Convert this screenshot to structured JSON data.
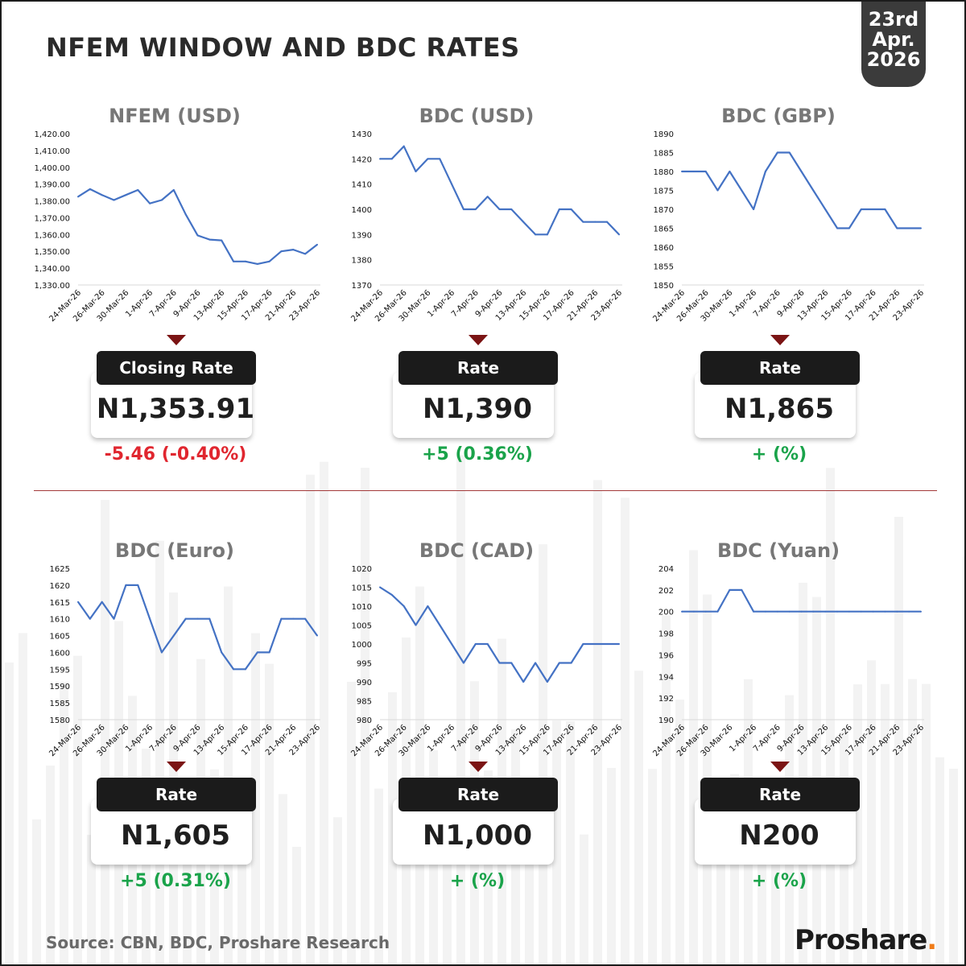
{
  "header": {
    "title": "NFEM WINDOW AND BDC RATES",
    "date_line1": "23rd",
    "date_line2": "Apr.",
    "date_line3": "2026"
  },
  "source": "Source: CBN, BDC, Proshare Research",
  "logo": {
    "text": "Proshare",
    "dot": "."
  },
  "colors": {
    "line": "#4472c4",
    "negative": "#e0262f",
    "positive": "#1aa34a",
    "arrow": "#7b1414"
  },
  "x_tick_labels": [
    "24-Mar-26",
    "26-Mar-26",
    "30-Mar-26",
    "1-Apr-26",
    "7-Apr-26",
    "9-Apr-26",
    "13-Apr-26",
    "15-Apr-26",
    "17-Apr-26",
    "21-Apr-26",
    "23-Apr-26"
  ],
  "panels": [
    {
      "title": "NFEM (USD)",
      "rate_label": "Closing Rate",
      "rate_value": "N1,353.91",
      "change": "-5.46 (-0.40%)",
      "change_sign": "negative",
      "chart_data": {
        "type": "line",
        "title": "NFEM (USD)",
        "ylim": [
          1330,
          1420
        ],
        "y_ticks": [
          "1,330.00",
          "1,340.00",
          "1,350.00",
          "1,360.00",
          "1,370.00",
          "1,380.00",
          "1,390.00",
          "1,400.00",
          "1,410.00",
          "1,420.00"
        ],
        "values": [
          1382.5,
          1387,
          1383.5,
          1380.5,
          1383.5,
          1386.5,
          1378.5,
          1380.5,
          1386.5,
          1372,
          1359.5,
          1357,
          1356.5,
          1344,
          1344,
          1342.5,
          1344,
          1350,
          1351,
          1348.5,
          1354
        ]
      }
    },
    {
      "title": "BDC (USD)",
      "rate_label": "Rate",
      "rate_value": "N1,390",
      "change": "+5 (0.36%)",
      "change_sign": "positive",
      "chart_data": {
        "type": "line",
        "title": "BDC (USD)",
        "ylim": [
          1370,
          1430
        ],
        "y_ticks": [
          "1370",
          "1380",
          "1390",
          "1400",
          "1410",
          "1420",
          "1430"
        ],
        "values": [
          1420,
          1420,
          1425,
          1415,
          1420,
          1420,
          1410,
          1400,
          1400,
          1405,
          1400,
          1400,
          1395,
          1390,
          1390,
          1400,
          1400,
          1395,
          1395,
          1395,
          1390
        ]
      }
    },
    {
      "title": "BDC (GBP)",
      "rate_label": "Rate",
      "rate_value": "N1,865",
      "change": "+ (%)",
      "change_sign": "positive",
      "chart_data": {
        "type": "line",
        "title": "BDC (GBP)",
        "ylim": [
          1850,
          1890
        ],
        "y_ticks": [
          "1850",
          "1855",
          "1860",
          "1865",
          "1870",
          "1875",
          "1880",
          "1885",
          "1890"
        ],
        "values": [
          1880,
          1880,
          1880,
          1875,
          1880,
          1875,
          1870,
          1880,
          1885,
          1885,
          1880,
          1875,
          1870,
          1865,
          1865,
          1870,
          1870,
          1870,
          1865,
          1865,
          1865
        ]
      }
    },
    {
      "title": "BDC (Euro)",
      "rate_label": "Rate",
      "rate_value": "N1,605",
      "change": "+5 (0.31%)",
      "change_sign": "positive",
      "chart_data": {
        "type": "line",
        "title": "BDC (Euro)",
        "ylim": [
          1580,
          1625
        ],
        "y_ticks": [
          "1580",
          "1585",
          "1590",
          "1595",
          "1600",
          "1605",
          "1610",
          "1615",
          "1620",
          "1625"
        ],
        "values": [
          1615,
          1610,
          1615,
          1610,
          1620,
          1620,
          1610,
          1600,
          1605,
          1610,
          1610,
          1610,
          1600,
          1595,
          1595,
          1600,
          1600,
          1610,
          1610,
          1610,
          1605
        ]
      }
    },
    {
      "title": "BDC (CAD)",
      "rate_label": "Rate",
      "rate_value": "N1,000",
      "change": "+ (%)",
      "change_sign": "positive",
      "chart_data": {
        "type": "line",
        "title": "BDC (CAD)",
        "ylim": [
          980,
          1020
        ],
        "y_ticks": [
          "980",
          "985",
          "990",
          "995",
          "1000",
          "1005",
          "1010",
          "1015",
          "1020"
        ],
        "values": [
          1015,
          1013,
          1010,
          1005,
          1010,
          1005,
          1000,
          995,
          1000,
          1000,
          995,
          995,
          990,
          995,
          990,
          995,
          995,
          1000,
          1000,
          1000,
          1000
        ]
      }
    },
    {
      "title": "BDC (Yuan)",
      "rate_label": "Rate",
      "rate_value": "N200",
      "change": "+ (%)",
      "change_sign": "positive",
      "chart_data": {
        "type": "line",
        "title": "BDC (Yuan)",
        "ylim": [
          190,
          204
        ],
        "y_ticks": [
          "190",
          "192",
          "194",
          "196",
          "198",
          "200",
          "202",
          "204"
        ],
        "values": [
          200,
          200,
          200,
          200,
          202,
          202,
          200,
          200,
          200,
          200,
          200,
          200,
          200,
          200,
          200,
          200,
          200,
          200,
          200,
          200,
          200
        ]
      }
    }
  ]
}
